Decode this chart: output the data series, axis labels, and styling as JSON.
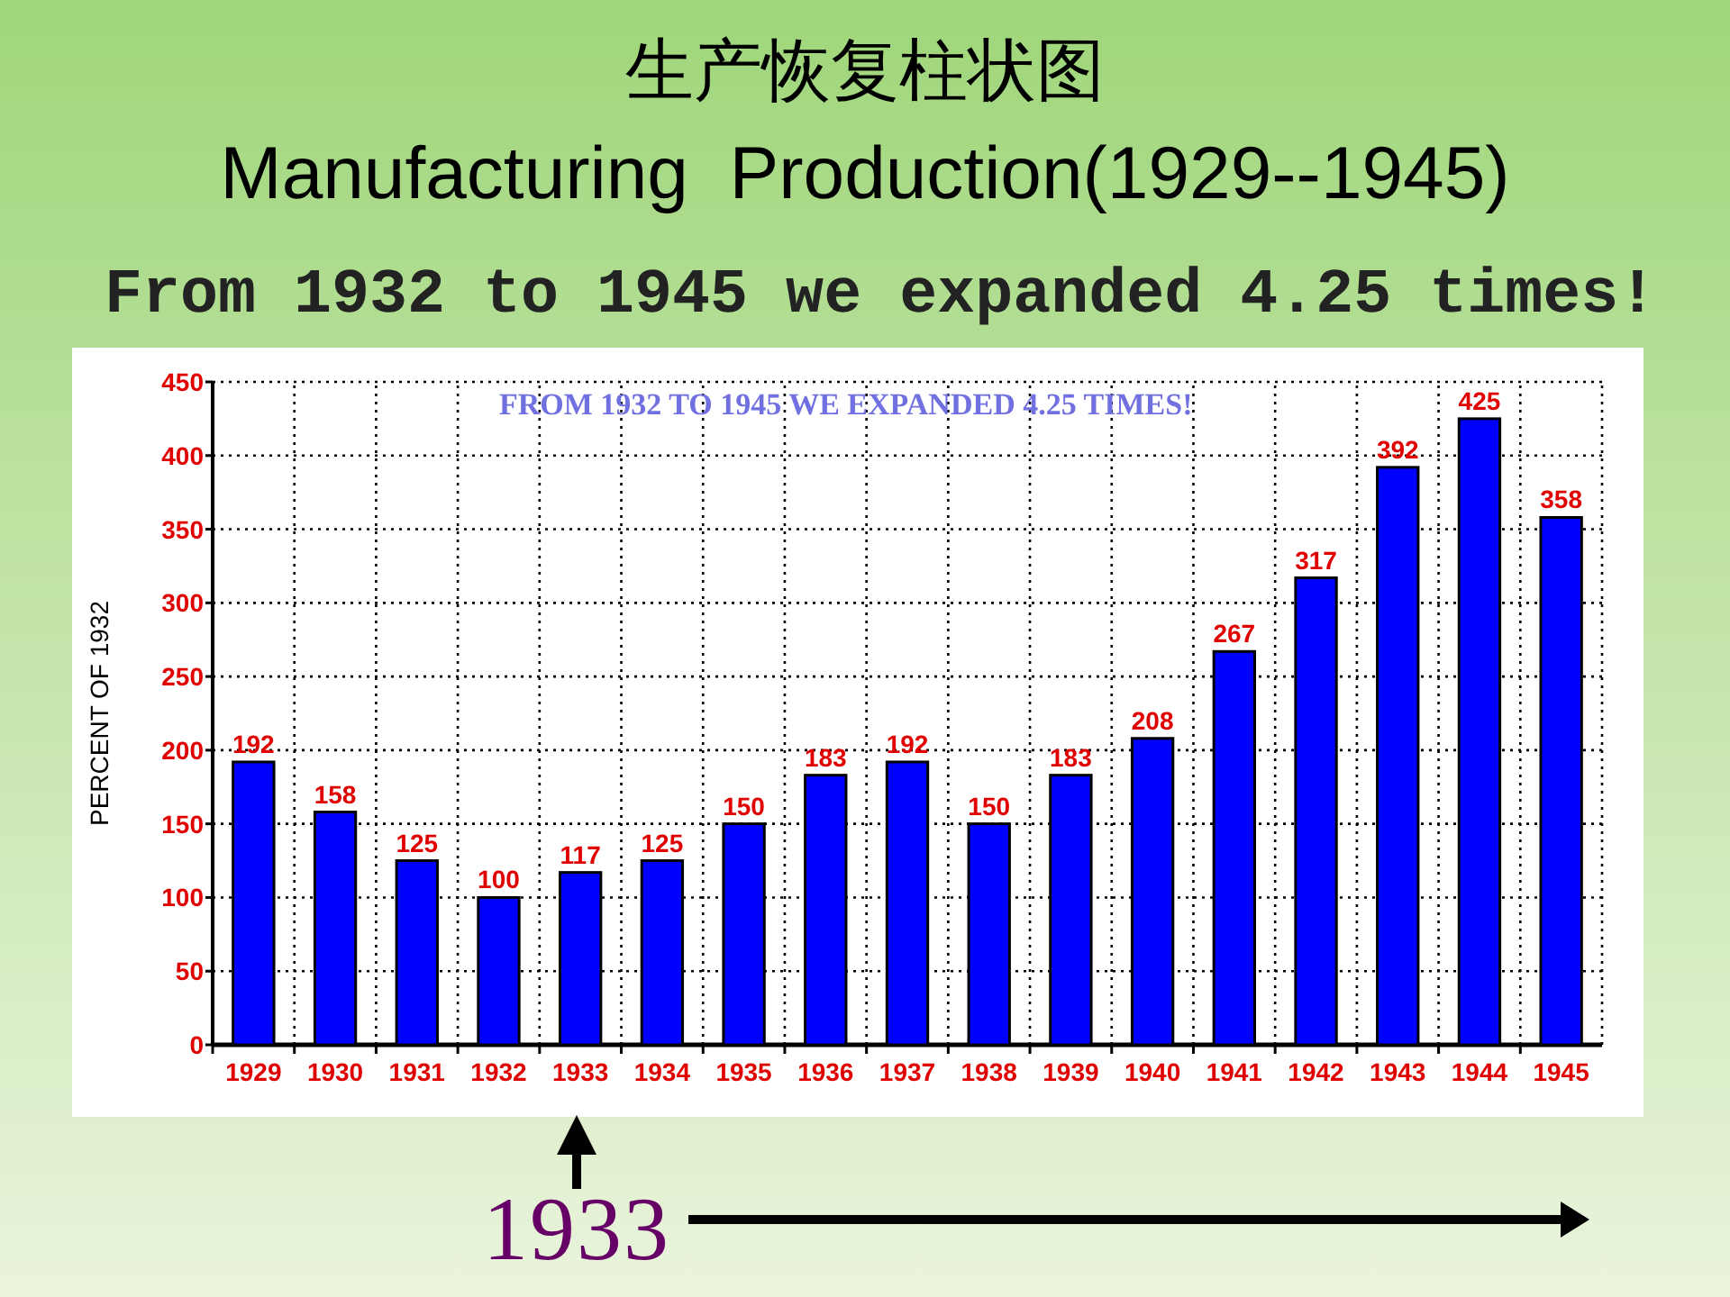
{
  "chart_data": {
    "type": "bar",
    "title": "生产恢复柱状图",
    "subtitle": "Manufacturing  Production(1929--1945)",
    "ylabel": "PERCENT OF 1932",
    "annotations": [
      "From 1932 to 1945 we expanded 4.25 times!",
      "FROM 1932 TO 1945 WE EXPANDED 4.25 TIMES!",
      "1933"
    ],
    "categories": [
      "1929",
      "1930",
      "1931",
      "1932",
      "1933",
      "1934",
      "1935",
      "1936",
      "1937",
      "1938",
      "1939",
      "1940",
      "1941",
      "1942",
      "1943",
      "1944",
      "1945"
    ],
    "values": [
      192,
      158,
      125,
      100,
      117,
      125,
      150,
      183,
      192,
      150,
      183,
      208,
      267,
      317,
      392,
      425,
      358
    ],
    "color": "#0000ff",
    "ylim": [
      0,
      450
    ],
    "yticks": [
      0,
      50,
      100,
      150,
      200,
      250,
      300,
      350,
      400,
      450
    ],
    "grid": true,
    "data_labels": true
  }
}
